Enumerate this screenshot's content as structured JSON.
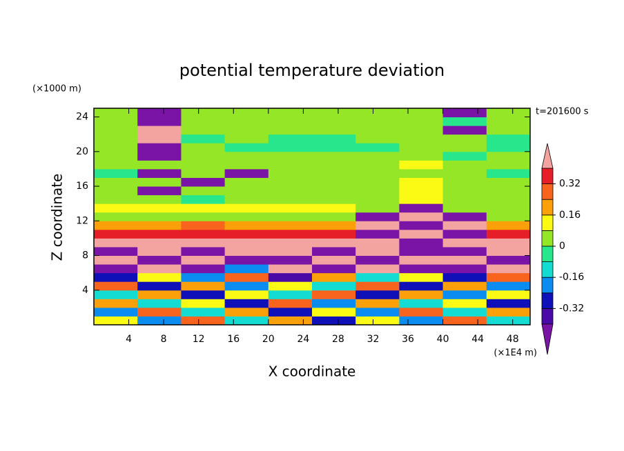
{
  "chart_data": {
    "type": "contour",
    "title": "potential temperature deviation",
    "x_label": "X coordinate",
    "y_label": "Z coordinate",
    "x_unit_label": "(×1E4 m)",
    "y_unit_label": "(×1000 m)",
    "annotation": "t=201600 s",
    "xlim": [
      0,
      50
    ],
    "ylim": [
      0,
      25
    ],
    "xticks": [
      4,
      8,
      12,
      16,
      20,
      24,
      28,
      32,
      36,
      40,
      44,
      48
    ],
    "yticks": [
      4,
      8,
      12,
      16,
      20,
      24
    ],
    "levels": [
      -0.4,
      -0.32,
      -0.24,
      -0.16,
      -0.08,
      0,
      0.08,
      0.16,
      0.24,
      0.32,
      0.4
    ],
    "colors": [
      "#7a14a6",
      "#4a0aa8",
      "#1010b8",
      "#0a8cf0",
      "#14dcd2",
      "#28e68c",
      "#96e628",
      "#fafa14",
      "#fca00a",
      "#f8641e",
      "#e61e28",
      "#f4a4a0"
    ],
    "colorbar_ticks": [
      -0.32,
      -0.16,
      0,
      0.16,
      0.32
    ],
    "x": [
      2.5,
      7.5,
      12.5,
      17.5,
      22.5,
      27.5,
      32.5,
      37.5,
      42.5,
      47.5
    ],
    "z": [
      0.5,
      1.5,
      2.5,
      3.5,
      4.5,
      5.5,
      6.5,
      7.5,
      8.5,
      9.5,
      10.5,
      11.5,
      12.5,
      13.5,
      14.5,
      15.5,
      16.5,
      17.5,
      18.5,
      19.5,
      20.5,
      21.5,
      22.5,
      23.5,
      24.5
    ],
    "values": [
      [
        0.1,
        -0.2,
        0.3,
        -0.1,
        0.2,
        -0.3,
        0.1,
        -0.2,
        0.3,
        -0.1
      ],
      [
        -0.2,
        0.3,
        -0.1,
        0.2,
        -0.3,
        0.1,
        -0.2,
        0.3,
        -0.1,
        0.2
      ],
      [
        0.2,
        -0.1,
        0.1,
        -0.3,
        0.3,
        -0.2,
        0.2,
        -0.1,
        0.1,
        -0.3
      ],
      [
        -0.1,
        0.2,
        -0.3,
        0.1,
        -0.1,
        0.3,
        -0.3,
        0.2,
        -0.2,
        0.1
      ],
      [
        0.3,
        -0.3,
        0.2,
        -0.2,
        0.1,
        -0.1,
        0.3,
        -0.3,
        0.2,
        -0.2
      ],
      [
        -0.3,
        0.1,
        -0.2,
        0.3,
        -0.4,
        0.2,
        -0.1,
        0.1,
        -0.3,
        0.3
      ],
      [
        -0.45,
        0.45,
        -0.45,
        -0.2,
        0.45,
        -0.45,
        0.45,
        -0.45,
        -0.45,
        0.45
      ],
      [
        0.45,
        -0.45,
        0.45,
        -0.45,
        -0.45,
        0.45,
        -0.45,
        0.45,
        0.45,
        -0.45
      ],
      [
        -0.45,
        0.45,
        -0.45,
        0.45,
        0.45,
        -0.45,
        0.45,
        -0.45,
        -0.45,
        0.45
      ],
      [
        0.45,
        0.45,
        0.45,
        0.45,
        0.45,
        0.45,
        0.45,
        -0.45,
        0.45,
        0.45
      ],
      [
        0.36,
        0.36,
        0.36,
        0.36,
        0.36,
        0.36,
        -0.45,
        0.45,
        -0.45,
        0.36
      ],
      [
        0.2,
        0.2,
        0.28,
        0.2,
        0.2,
        0.2,
        0.45,
        -0.45,
        0.45,
        0.2
      ],
      [
        0.04,
        0.04,
        0.04,
        0.04,
        0.04,
        0.04,
        -0.45,
        0.45,
        -0.45,
        0.04
      ],
      [
        0.12,
        0.12,
        0.12,
        0.12,
        0.12,
        0.12,
        0.04,
        -0.45,
        0.04,
        0.04
      ],
      [
        0.04,
        0.04,
        -0.04,
        0.04,
        0.04,
        0.04,
        0.04,
        0.12,
        0.04,
        0.04
      ],
      [
        0.04,
        -0.45,
        0.04,
        0.04,
        0.04,
        0.04,
        0.04,
        0.12,
        0.04,
        0.04
      ],
      [
        0.04,
        0.04,
        -0.45,
        0.04,
        0.04,
        0.04,
        0.04,
        0.12,
        0.04,
        0.04
      ],
      [
        -0.04,
        -0.45,
        0.04,
        -0.45,
        0.04,
        0.04,
        0.04,
        0.04,
        0.04,
        -0.04
      ],
      [
        0.04,
        0.04,
        0.04,
        0.04,
        0.04,
        0.04,
        0.04,
        0.12,
        0.04,
        0.04
      ],
      [
        0.04,
        -0.45,
        0.04,
        0.04,
        0.04,
        0.04,
        0.04,
        0.04,
        -0.04,
        0.04
      ],
      [
        0.04,
        -0.45,
        0.04,
        -0.04,
        -0.04,
        -0.04,
        -0.04,
        0.04,
        0.04,
        -0.04
      ],
      [
        0.04,
        0.45,
        -0.04,
        0.04,
        -0.04,
        -0.04,
        0.04,
        0.04,
        0.04,
        -0.04
      ],
      [
        0.04,
        0.45,
        0.04,
        0.04,
        0.04,
        0.04,
        0.04,
        0.04,
        -0.45,
        0.04
      ],
      [
        0.04,
        -0.45,
        0.04,
        0.04,
        0.04,
        0.04,
        0.04,
        0.04,
        -0.04,
        0.04
      ],
      [
        0.04,
        -0.45,
        0.04,
        0.04,
        0.04,
        0.04,
        0.04,
        0.04,
        -0.45,
        0.04
      ]
    ]
  }
}
